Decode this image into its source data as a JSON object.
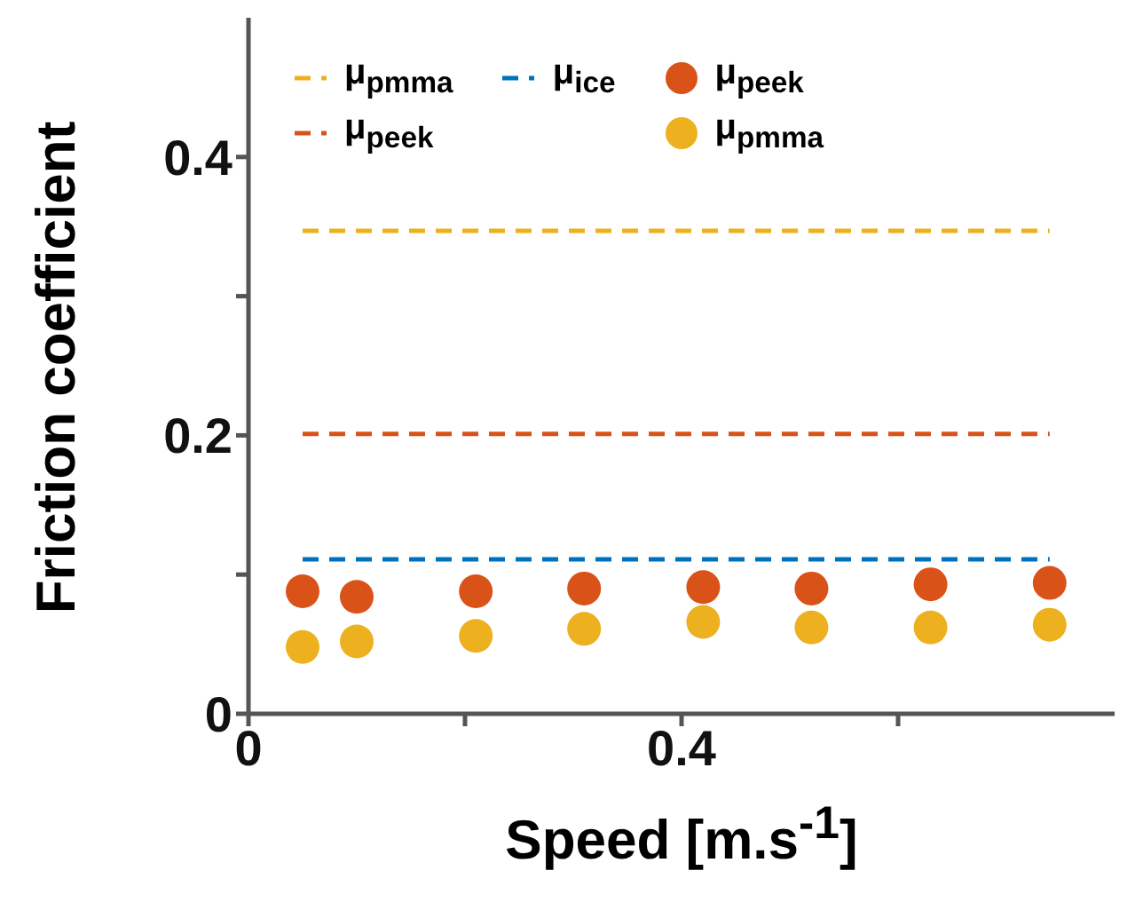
{
  "chart_data": {
    "type": "scatter",
    "xlabel": "Speed [m.s$^{-1}$]",
    "ylabel": "Friction coefficient",
    "xlim": [
      0,
      0.8
    ],
    "xticks": [
      0,
      {
        "value": 0.2,
        "label": null
      },
      0.4,
      {
        "value": 0.6,
        "label": null
      }
    ],
    "ylim": [
      0,
      0.5
    ],
    "yticks": [
      0,
      {
        "value": 0.1,
        "label": null
      },
      0.2,
      {
        "value": 0.3,
        "label": null
      },
      0.4
    ],
    "grid": false,
    "legend": "top left",
    "series": [
      {
        "name": "μ$_{pmma}$",
        "type": "line",
        "line_style": "dashed",
        "marker": "none",
        "color": "#edb120",
        "x": [
          0.05,
          0.74
        ],
        "values": [
          0.347,
          0.347
        ]
      },
      {
        "name": "μ$_{peek}$",
        "type": "line",
        "line_style": "dashed",
        "marker": "none",
        "color": "#d95319",
        "x": [
          0.05,
          0.74
        ],
        "values": [
          0.201,
          0.201
        ]
      },
      {
        "name": "μ$_{ice}$",
        "type": "line",
        "line_style": "dashed",
        "marker": "none",
        "color": "#0072bd",
        "x": [
          0.05,
          0.74
        ],
        "values": [
          0.111,
          0.111
        ]
      },
      {
        "name": "μ$_{peek}$",
        "marker": "circle",
        "color": "#d95319",
        "x": [
          0.05,
          0.1,
          0.21,
          0.31,
          0.42,
          0.52,
          0.63,
          0.74
        ],
        "values": [
          0.088,
          0.084,
          0.088,
          0.09,
          0.091,
          0.09,
          0.093,
          0.094
        ]
      },
      {
        "name": "μ$_{pmma}$",
        "marker": "circle",
        "color": "#edb120",
        "x": [
          0.05,
          0.1,
          0.21,
          0.31,
          0.42,
          0.52,
          0.63,
          0.74
        ],
        "values": [
          0.048,
          0.052,
          0.056,
          0.061,
          0.066,
          0.062,
          0.062,
          0.064
        ]
      }
    ]
  }
}
